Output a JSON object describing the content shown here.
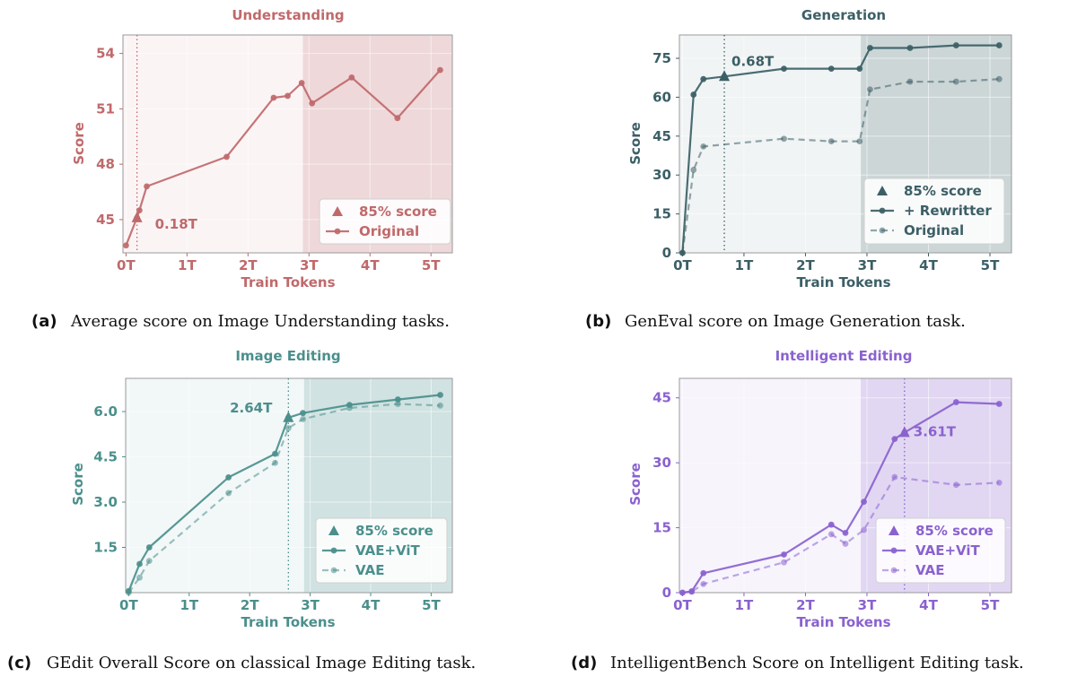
{
  "captions": [
    {
      "tag": "(a)",
      "text": "Average score on Image Understanding tasks."
    },
    {
      "tag": "(b)",
      "text": "GenEval score on Image Generation task."
    },
    {
      "tag": "(c)",
      "text": "GEdit Overall Score on classical Image Editing task."
    },
    {
      "tag": "(d)",
      "text": "IntelligentBench Score on Intelligent Editing task."
    }
  ],
  "chart_data": [
    {
      "type": "line",
      "title": "Understanding",
      "xlabel": "Train Tokens",
      "ylabel": "Score",
      "color": "#c0696b",
      "xlim": [
        -0.05,
        5.35
      ],
      "ylim": [
        43.2,
        55.0
      ],
      "xticks": [
        0,
        1,
        2,
        3,
        4,
        5
      ],
      "xtick_labels": [
        "0T",
        "1T",
        "2T",
        "3T",
        "4T",
        "5T"
      ],
      "yticks": [
        45,
        48,
        51,
        54
      ],
      "ytick_labels": [
        "45",
        "48",
        "51",
        "54"
      ],
      "shade_from": 2.9,
      "marker_line_x": 0.18,
      "marker": {
        "x": 0.18,
        "y": 45.1,
        "label": "0.18T"
      },
      "series": [
        {
          "name": "Original",
          "dashed": false,
          "x": [
            0.0,
            0.18,
            0.22,
            0.34,
            1.65,
            2.42,
            2.65,
            2.88,
            3.05,
            3.7,
            4.45,
            5.15
          ],
          "y": [
            43.6,
            45.1,
            45.5,
            46.8,
            48.4,
            51.6,
            51.7,
            52.4,
            51.3,
            52.7,
            50.5,
            53.1
          ]
        }
      ],
      "legend": [
        "85% score",
        "Original"
      ],
      "legend_position": "bottom-right"
    },
    {
      "type": "line",
      "title": "Generation",
      "xlabel": "Train Tokens",
      "ylabel": "Score",
      "color": "#3c5f66",
      "xlim": [
        -0.05,
        5.35
      ],
      "ylim": [
        0,
        84
      ],
      "xticks": [
        0,
        1,
        2,
        3,
        4,
        5
      ],
      "xtick_labels": [
        "0T",
        "1T",
        "2T",
        "3T",
        "4T",
        "5T"
      ],
      "yticks": [
        0,
        15,
        30,
        45,
        60,
        75
      ],
      "ytick_labels": [
        "0",
        "15",
        "30",
        "45",
        "60",
        "75"
      ],
      "shade_from": 2.9,
      "marker_line_x": 0.68,
      "marker": {
        "x": 0.68,
        "y": 68,
        "label": "0.68T"
      },
      "series": [
        {
          "name": "+ Rewritter",
          "dashed": false,
          "x": [
            0.0,
            0.18,
            0.34,
            0.68,
            1.65,
            2.42,
            2.88,
            3.05,
            3.7,
            4.45,
            5.15
          ],
          "y": [
            0,
            61,
            67,
            68,
            71,
            71,
            71,
            79,
            79,
            80,
            80
          ]
        },
        {
          "name": "Original",
          "dashed": true,
          "x": [
            0.0,
            0.18,
            0.34,
            1.65,
            2.42,
            2.88,
            3.05,
            3.7,
            4.45,
            5.15
          ],
          "y": [
            0,
            32,
            41,
            44,
            43,
            43,
            63,
            66,
            66,
            67
          ]
        }
      ],
      "legend": [
        "85% score",
        "+ Rewritter",
        "Original"
      ],
      "legend_position": "bottom-right"
    },
    {
      "type": "line",
      "title": "Image Editing",
      "xlabel": "Train Tokens",
      "ylabel": "Score",
      "color": "#4b8f8c",
      "xlim": [
        -0.05,
        5.35
      ],
      "ylim": [
        0,
        7.1
      ],
      "xticks": [
        0,
        1,
        2,
        3,
        4,
        5
      ],
      "xtick_labels": [
        "0T",
        "1T",
        "2T",
        "3T",
        "4T",
        "5T"
      ],
      "yticks": [
        1.5,
        3.0,
        4.5,
        6.0
      ],
      "ytick_labels": [
        "1.5",
        "3.0",
        "4.5",
        "6.0"
      ],
      "shade_from": 2.9,
      "marker_line_x": 2.64,
      "marker": {
        "x": 2.64,
        "y": 5.8,
        "label": "2.64T"
      },
      "series": [
        {
          "name": "VAE+ViT",
          "dashed": false,
          "x": [
            0.0,
            0.18,
            0.34,
            1.65,
            2.42,
            2.64,
            2.88,
            3.65,
            4.45,
            5.15
          ],
          "y": [
            0.05,
            0.95,
            1.5,
            3.82,
            4.6,
            5.8,
            5.95,
            6.22,
            6.4,
            6.55
          ]
        },
        {
          "name": "VAE",
          "dashed": true,
          "x": [
            0.0,
            0.18,
            0.34,
            1.65,
            2.42,
            2.64,
            2.88,
            3.65,
            4.45,
            5.15
          ],
          "y": [
            0.0,
            0.5,
            1.05,
            3.3,
            4.3,
            5.45,
            5.75,
            6.12,
            6.25,
            6.2
          ]
        }
      ],
      "legend": [
        "85% score",
        "VAE+ViT",
        "VAE"
      ],
      "legend_position": "bottom-right"
    },
    {
      "type": "line",
      "title": "Intelligent Editing",
      "xlabel": "Train Tokens",
      "ylabel": "Score",
      "color": "#8a62cf",
      "xlim": [
        -0.05,
        5.35
      ],
      "ylim": [
        0,
        49.5
      ],
      "xticks": [
        0,
        1,
        2,
        3,
        4,
        5
      ],
      "xtick_labels": [
        "0T",
        "1T",
        "2T",
        "3T",
        "4T",
        "5T"
      ],
      "yticks": [
        0,
        15,
        30,
        45
      ],
      "ytick_labels": [
        "0",
        "15",
        "30",
        "45"
      ],
      "shade_from": 2.9,
      "marker_line_x": 3.61,
      "marker": {
        "x": 3.61,
        "y": 37,
        "label": "3.61T"
      },
      "series": [
        {
          "name": "VAE+ViT",
          "dashed": false,
          "x": [
            0.0,
            0.15,
            0.34,
            1.65,
            2.42,
            2.65,
            2.95,
            3.45,
            3.61,
            4.45,
            5.15
          ],
          "y": [
            0,
            0.3,
            4.5,
            8.8,
            15.7,
            13.8,
            21,
            35.5,
            37,
            44,
            43.6
          ]
        },
        {
          "name": "VAE",
          "dashed": true,
          "x": [
            0.0,
            0.15,
            0.34,
            1.65,
            2.42,
            2.65,
            2.95,
            3.45,
            4.45,
            5.15
          ],
          "y": [
            0,
            0.2,
            2,
            7,
            13.5,
            11.3,
            14.5,
            26.7,
            24.9,
            25.4
          ]
        }
      ],
      "legend": [
        "85% score",
        "VAE+ViT",
        "VAE"
      ],
      "legend_position": "bottom-right"
    }
  ]
}
